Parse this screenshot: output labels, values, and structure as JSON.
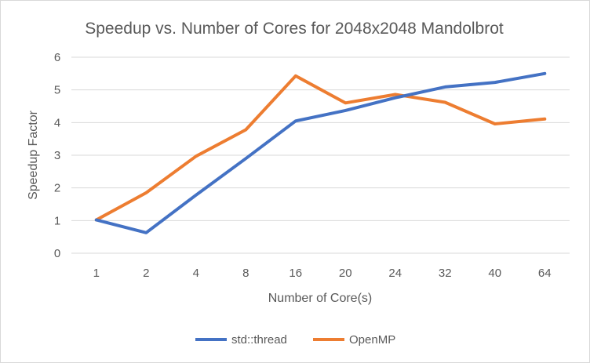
{
  "chart_data": {
    "type": "line",
    "title": "Speedup vs. Number of Cores for 2048x2048 Mandolbrot",
    "xlabel": "Number of Core(s)",
    "ylabel": "Speedup Factor",
    "categories": [
      "1",
      "2",
      "4",
      "8",
      "16",
      "20",
      "24",
      "32",
      "40",
      "64"
    ],
    "ylim": [
      0,
      6
    ],
    "yticks": [
      "0",
      "1",
      "2",
      "3",
      "4",
      "5",
      "6"
    ],
    "grid": true,
    "legend_position": "bottom",
    "series": [
      {
        "name": "std::thread",
        "color": "#4472c4",
        "values": [
          1.02,
          0.63,
          1.78,
          2.9,
          4.05,
          4.37,
          4.76,
          5.09,
          5.23,
          5.5
        ]
      },
      {
        "name": "OpenMP",
        "color": "#ed7d31",
        "values": [
          1.02,
          1.85,
          2.97,
          3.78,
          5.43,
          4.6,
          4.86,
          4.62,
          3.96,
          4.11
        ]
      }
    ]
  }
}
